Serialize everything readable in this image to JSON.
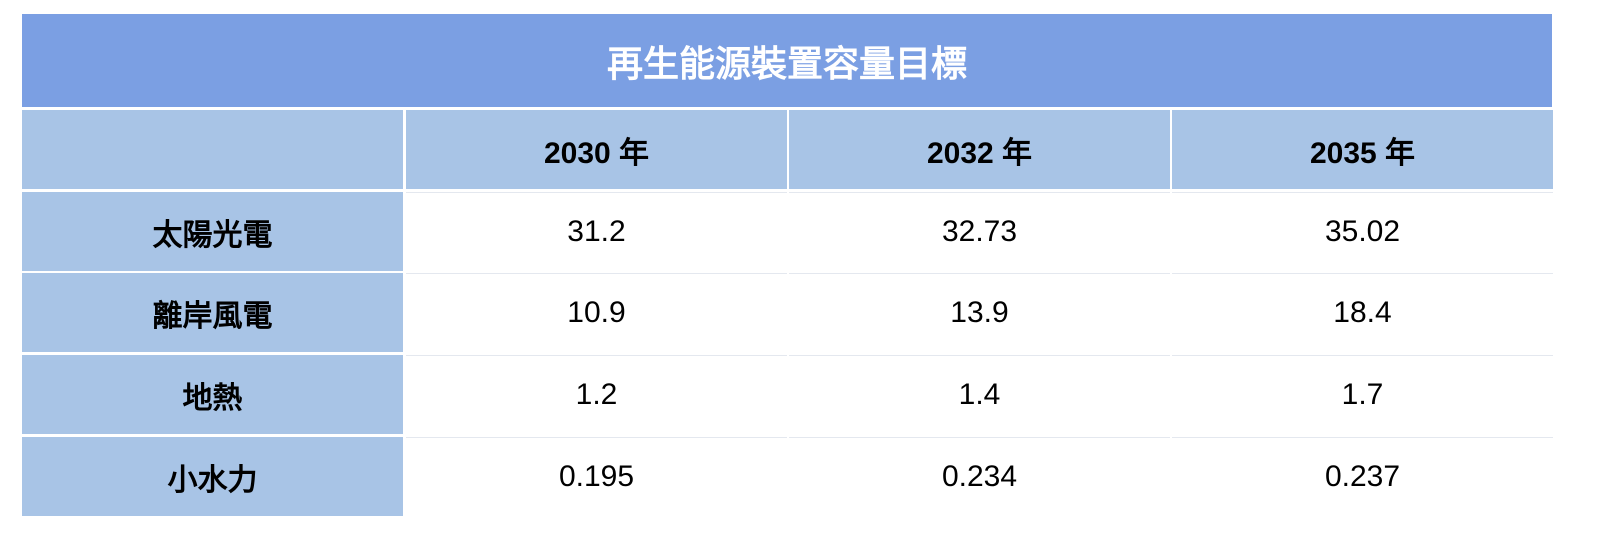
{
  "title": "再生能源裝置容量目標",
  "columns": [
    "2030 年",
    "2032 年",
    "2035 年"
  ],
  "rows": [
    {
      "label": "太陽光電",
      "cells": [
        "31.2",
        "32.73",
        "35.02"
      ]
    },
    {
      "label": "離岸風電",
      "cells": [
        "10.9",
        "13.9",
        "18.4"
      ]
    },
    {
      "label": "地熱",
      "cells": [
        "1.2",
        "1.4",
        "1.7"
      ]
    },
    {
      "label": "小水力",
      "cells": [
        "0.195",
        "0.234",
        "0.237"
      ]
    }
  ]
}
